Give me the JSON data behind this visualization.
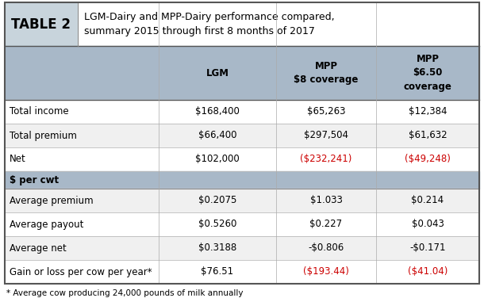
{
  "title_label": "TABLE 2",
  "title_text": "LGM-Dairy and MPP-Dairy performance compared,\nsummary 2015 through first 8 months of 2017",
  "header_bg": "#a8b8c8",
  "table2_bg": "#c8d4dc",
  "footer_text": "* Average cow producing 24,000 pounds of milk annually",
  "col_headers": [
    "",
    "LGM",
    "MPP\n$8 coverage",
    "MPP\n$6.50\ncoverage"
  ],
  "rows": [
    {
      "label": "Total income",
      "vals": [
        "$168,400",
        "$65,263",
        "$12,384"
      ],
      "colors": [
        "#000000",
        "#000000",
        "#000000"
      ],
      "bg": "#ffffff"
    },
    {
      "label": "Total premium",
      "vals": [
        "$66,400",
        "$297,504",
        "$61,632"
      ],
      "colors": [
        "#000000",
        "#000000",
        "#000000"
      ],
      "bg": "#f0f0f0"
    },
    {
      "label": "Net",
      "vals": [
        "$102,000",
        "($232,241)",
        "($49,248)"
      ],
      "colors": [
        "#000000",
        "#cc0000",
        "#cc0000"
      ],
      "bg": "#ffffff"
    },
    {
      "label": "$ per cwt",
      "vals": [
        "",
        "",
        ""
      ],
      "colors": [
        "#000000",
        "#000000",
        "#000000"
      ],
      "bg": "#a8b8c8",
      "bold": true
    },
    {
      "label": "Average premium",
      "vals": [
        "$0.2075",
        "$1.033",
        "$0.214"
      ],
      "colors": [
        "#000000",
        "#000000",
        "#000000"
      ],
      "bg": "#f0f0f0"
    },
    {
      "label": "Average payout",
      "vals": [
        "$0.5260",
        "$0.227",
        "$0.043"
      ],
      "colors": [
        "#000000",
        "#000000",
        "#000000"
      ],
      "bg": "#ffffff"
    },
    {
      "label": "Average net",
      "vals": [
        "$0.3188",
        "-$0.806",
        "-$0.171"
      ],
      "colors": [
        "#000000",
        "#000000",
        "#000000"
      ],
      "bg": "#f0f0f0"
    },
    {
      "label": "Gain or loss per cow per year*",
      "vals": [
        "$76.51",
        "($193.44)",
        "($41.04)"
      ],
      "colors": [
        "#000000",
        "#cc0000",
        "#cc0000"
      ],
      "bg": "#ffffff"
    }
  ]
}
